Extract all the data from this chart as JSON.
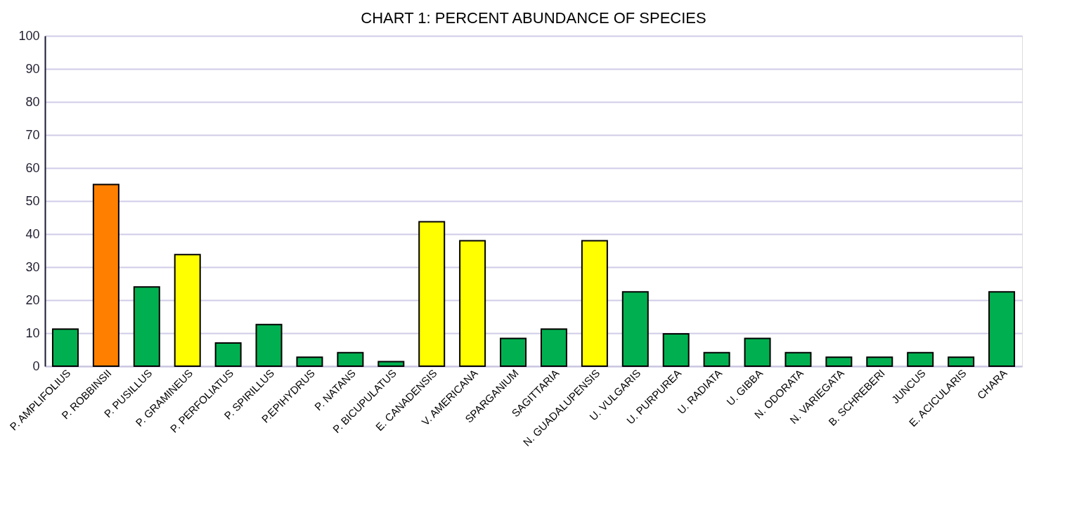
{
  "chart_data": {
    "type": "bar",
    "title": "CHART 1: PERCENT ABUNDANCE OF SPECIES",
    "categories": [
      "P. AMPLIFOLIUS",
      "P. ROBBINSII",
      "P. PUSILLUS",
      "P. GRAMINEUS",
      "P. PERFOLIATUS",
      "P. SPIRILLUS",
      "P.EPIHYDRUS",
      "P. NATANS",
      "P. BICUPULATUS",
      "E. CANADENSIS",
      "V. AMERICANA",
      "SPARGANIUM",
      "SAGITTARIA",
      "N. GUADALUPENSIS",
      "U. VULGARIS",
      "U. PURPUREA",
      "U. RADIATA",
      "U. GIBBA",
      "N. ODORATA",
      "N. VARIEGATA",
      "B. SCHREBERI",
      "JUNCUS",
      "E. ACICULARIS",
      "CHARA"
    ],
    "values": [
      11.2,
      55,
      24,
      33.8,
      7.0,
      12.6,
      2.7,
      4.1,
      1.4,
      43.7,
      38,
      8.4,
      11.2,
      38,
      22.5,
      9.8,
      4.1,
      8.4,
      4.1,
      2.7,
      2.7,
      4.1,
      2.7,
      22.5
    ],
    "colors": [
      "#00b050",
      "#ff8000",
      "#00b050",
      "#ffff00",
      "#00b050",
      "#00b050",
      "#00b050",
      "#00b050",
      "#00b050",
      "#ffff00",
      "#ffff00",
      "#00b050",
      "#00b050",
      "#ffff00",
      "#00b050",
      "#00b050",
      "#00b050",
      "#00b050",
      "#00b050",
      "#00b050",
      "#00b050",
      "#00b050",
      "#00b050",
      "#00b050"
    ],
    "ylim": [
      0,
      100
    ],
    "yticks": [
      0,
      10,
      20,
      30,
      40,
      50,
      60,
      70,
      80,
      90,
      100
    ],
    "grid": "y"
  }
}
